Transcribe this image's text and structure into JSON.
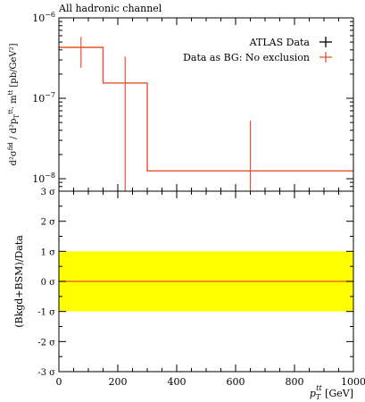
{
  "chart_data": [
    {
      "type": "line",
      "title": "All hadronic channel",
      "ylabel": "d²σ^fid / d²p_T^tt · m^tt [pb/GeV²]",
      "ylabel_parts": {
        "numerator": "d²σ",
        "numerator_sup": "fid",
        "denominator": "d²p",
        "denominator_sub": "T",
        "denominator_sup": "tt",
        "mult": "· m",
        "mult_sup": "tt",
        "unit": "[pb/GeV²]"
      },
      "yscale": "log",
      "ylim": [
        7e-09,
        1e-06
      ],
      "xlim": [
        0,
        1000
      ],
      "ytick_labels": [
        {
          "value": 1e-06,
          "base": "10",
          "exp": "−6"
        },
        {
          "value": 1e-07,
          "base": "10",
          "exp": "−7"
        },
        {
          "value": 1e-08,
          "base": "10",
          "exp": "−8"
        }
      ],
      "legend_position": "top-right",
      "series": [
        {
          "name": "ATLAS Data",
          "color": "#000000",
          "points": []
        },
        {
          "name": "Data as BG: No exclusion",
          "color": "#e5532c",
          "bins": [
            {
              "xlow": 0,
              "xhigh": 150,
              "y": 4.3e-07
            },
            {
              "xlow": 150,
              "xhigh": 300,
              "y": 1.55e-07
            },
            {
              "xlow": 300,
              "xhigh": 1000,
              "y": 1.25e-08
            }
          ],
          "errors": [
            {
              "x": 75,
              "low": 2.4e-07,
              "high": 5.8e-07
            },
            {
              "x": 225,
              "low": 7e-09,
              "high": 3.3e-07
            },
            {
              "x": 650,
              "low": 7e-09,
              "high": 5.3e-08
            }
          ]
        }
      ]
    },
    {
      "type": "line",
      "ylabel": "(Bkgd+BSM)/Data",
      "xlabel": "[GeV]",
      "xlabel_var": {
        "base": "p",
        "sub": "T",
        "sup": "tt"
      },
      "xlim": [
        0,
        1000
      ],
      "ylim": [
        -3,
        3
      ],
      "xticks": [
        "0",
        "200",
        "400",
        "600",
        "800",
        "1000"
      ],
      "xtick_values": [
        0,
        200,
        400,
        600,
        800,
        1000
      ],
      "ytick_values": [
        3,
        2,
        1,
        0,
        -1,
        -2,
        -3
      ],
      "ytick_labels": [
        "3 σ",
        "2 σ",
        "1 σ",
        "0 σ",
        "-1 σ",
        "-2 σ",
        "-3 σ"
      ],
      "band": {
        "low": -1,
        "high": 1,
        "color": "#ffff00"
      },
      "series": [
        {
          "name": "",
          "color": "#e5532c",
          "values": [
            0,
            0
          ]
        }
      ]
    }
  ]
}
